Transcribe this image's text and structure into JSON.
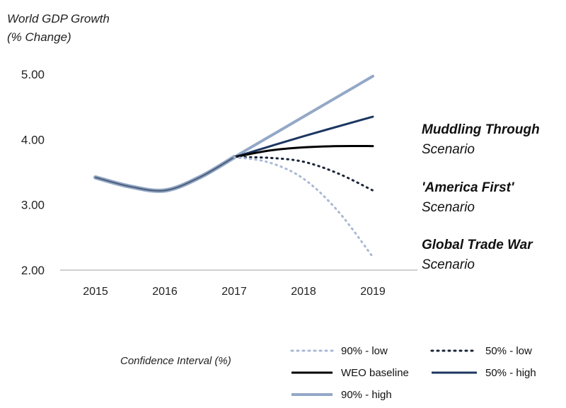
{
  "chart_data": {
    "type": "line",
    "ylabel_line1": "World GDP Growth",
    "ylabel_line2": "(% Change)",
    "categories": [
      "2015",
      "2016",
      "2017",
      "2018",
      "2019"
    ],
    "ylim": [
      2.0,
      5.0
    ],
    "yticks": [
      "2.00",
      "3.00",
      "4.00",
      "5.00"
    ],
    "shared_history": [
      [
        2015,
        3.42
      ],
      [
        2015.5,
        3.28
      ],
      [
        2016,
        3.22
      ],
      [
        2016.5,
        3.42
      ],
      [
        2017,
        3.73
      ]
    ],
    "series": [
      {
        "key": "p90_low",
        "name": "90% - low",
        "color": "#a9b8d6",
        "style": "dotted",
        "width": 3,
        "values": [
          [
            2017,
            3.73
          ],
          [
            2017.5,
            3.65
          ],
          [
            2018,
            3.4
          ],
          [
            2018.5,
            2.9
          ],
          [
            2019,
            2.2
          ]
        ]
      },
      {
        "key": "p50_low",
        "name": "50% - low",
        "color": "#1a2336",
        "style": "dotted",
        "width": 3,
        "values": [
          [
            2017,
            3.73
          ],
          [
            2017.5,
            3.72
          ],
          [
            2018,
            3.66
          ],
          [
            2018.5,
            3.48
          ],
          [
            2019,
            3.22
          ]
        ]
      },
      {
        "key": "baseline",
        "name": "WEO baseline",
        "color": "#000000",
        "style": "solid",
        "width": 3,
        "values": [
          [
            2017,
            3.73
          ],
          [
            2017.5,
            3.83
          ],
          [
            2018,
            3.88
          ],
          [
            2018.5,
            3.9
          ],
          [
            2019,
            3.9
          ]
        ]
      },
      {
        "key": "p50_high",
        "name": "50% - high",
        "color": "#1c3661",
        "style": "solid",
        "width": 3,
        "values": [
          [
            2017,
            3.73
          ],
          [
            2018,
            4.05
          ],
          [
            2019,
            4.35
          ]
        ]
      },
      {
        "key": "p90_high",
        "name": "90% - high",
        "color": "#93a8c7",
        "style": "solid",
        "width": 4,
        "values": [
          [
            2017,
            3.73
          ],
          [
            2018,
            4.35
          ],
          [
            2019,
            4.97
          ]
        ]
      }
    ],
    "annotations": [
      {
        "bold": "Muddling Through",
        "sub": "Scenario"
      },
      {
        "bold": "'America First'",
        "sub": "Scenario"
      },
      {
        "bold": "Global Trade War",
        "sub": "Scenario"
      }
    ],
    "legend_title": "Confidence Interval (%)"
  }
}
